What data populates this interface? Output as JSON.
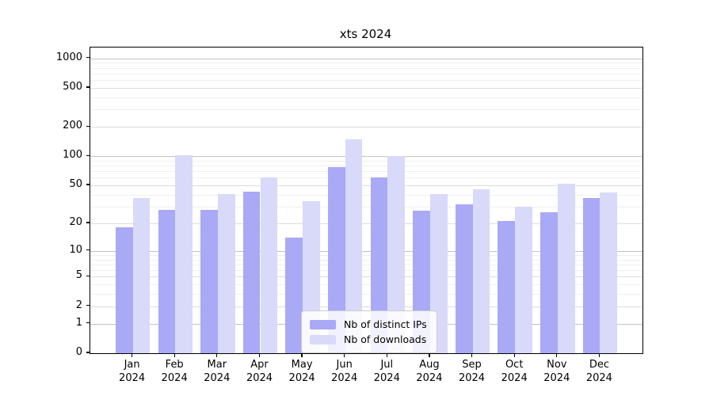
{
  "title": "xts 2024",
  "chart_data": {
    "type": "bar",
    "title": "xts 2024",
    "xlabel": "",
    "ylabel": "",
    "yscale": "log1p",
    "background": "#ffffff",
    "axis_color": "#000000",
    "text_color": "#000000",
    "categories": [
      "Jan",
      "Feb",
      "Mar",
      "Apr",
      "May",
      "Jun",
      "Jul",
      "Aug",
      "Sep",
      "Oct",
      "Nov",
      "Dec"
    ],
    "x_year_label": "2024",
    "series": [
      {
        "name": "Nb of distinct IPs",
        "color": "#a9a9f6",
        "values": [
          18,
          28,
          28,
          43,
          14,
          78,
          60,
          27,
          32,
          21,
          26,
          37
        ]
      },
      {
        "name": "Nb of downloads",
        "color": "#d9d9f9",
        "values": [
          37,
          103,
          41,
          61,
          34,
          150,
          101,
          41,
          46,
          30,
          52,
          42
        ]
      }
    ],
    "yticks": [
      0,
      1,
      2,
      5,
      10,
      20,
      50,
      100,
      200,
      500,
      1000
    ],
    "ylim": [
      0,
      1288
    ],
    "grid": {
      "on": true,
      "major_levels": [
        1,
        10,
        100,
        1000
      ],
      "labeled_levels": [
        2,
        5,
        20,
        50,
        200,
        500
      ],
      "minor_levels": [
        3,
        4,
        6,
        7,
        8,
        9,
        30,
        40,
        60,
        70,
        80,
        90,
        300,
        400,
        600,
        700,
        800,
        900
      ],
      "major_color": "#c3c3c3",
      "labeled_color": "#dcdcdc",
      "minor_color": "#efefef"
    },
    "legend_position": "bottom-center"
  }
}
